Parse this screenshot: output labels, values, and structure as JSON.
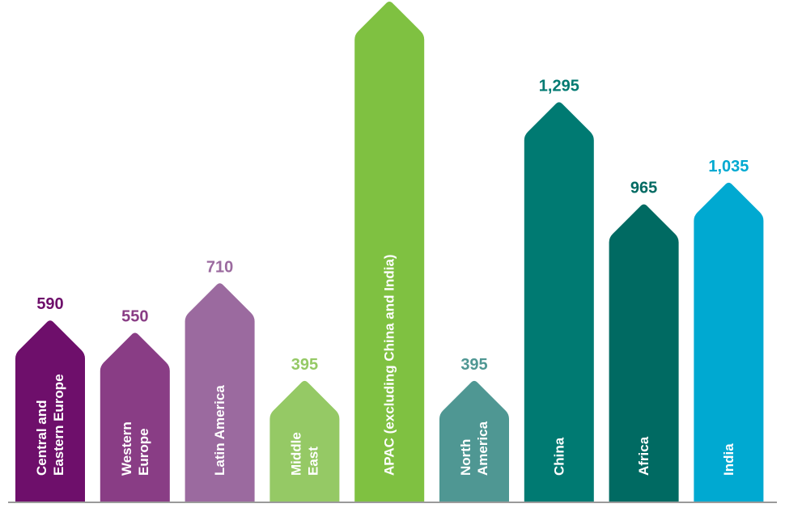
{
  "chart_data": {
    "type": "bar",
    "title": "",
    "xlabel": "",
    "ylabel": "",
    "ylim": [
      0,
      1620
    ],
    "grid": false,
    "legend": "none",
    "categories": [
      [
        "Central and",
        "Eastern Europe"
      ],
      [
        "Western",
        "Europe"
      ],
      [
        "Latin America"
      ],
      [
        "Middle",
        "East"
      ],
      [
        "APAC (excluding China and India)"
      ],
      [
        "North",
        "America"
      ],
      [
        "China"
      ],
      [
        "Africa"
      ],
      [
        "India"
      ]
    ],
    "values": [
      590,
      550,
      710,
      395,
      1620,
      395,
      1295,
      965,
      1035
    ],
    "value_labels": [
      "590",
      "550",
      "710",
      "395",
      "",
      "395",
      "1,295",
      "965",
      "1,035"
    ],
    "colors": [
      "#6e0f6b",
      "#893d85",
      "#9b6a9f",
      "#95c965",
      "#7fc141",
      "#4f9793",
      "#007a72",
      "#006a62",
      "#00a9d1"
    ],
    "baseline_color": "#9a9a9a"
  }
}
